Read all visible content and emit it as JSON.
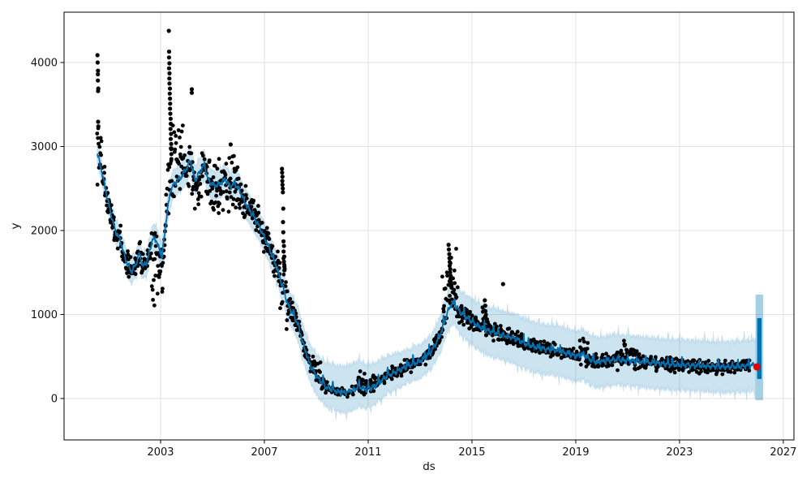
{
  "figure": {
    "title": "",
    "kind": "prophet-forecast-plot"
  },
  "chart_data": {
    "type": "scatter+line+band",
    "title": "",
    "xlabel": "ds",
    "ylabel": "y",
    "x_ticks": [
      2003,
      2007,
      2011,
      2015,
      2019,
      2023,
      2027
    ],
    "y_ticks": [
      0,
      1000,
      2000,
      3000,
      4000
    ],
    "xlim": [
      1999.28,
      2027.41
    ],
    "ylim": [
      -493,
      4599
    ],
    "grid": true,
    "legend": false,
    "colors": {
      "points": "#000000",
      "line": "#0072B2",
      "band": "#0072B2",
      "band_alpha": 0.2,
      "burst_band": "#0072B2",
      "burst_band_alpha": 0.35,
      "highlight": "#e60000",
      "grid": "#e2e2e2",
      "spine": "#000000",
      "text": "#111111"
    },
    "observations": {
      "start": 2000.555,
      "end": 2025.7,
      "interval_years": 0.0137,
      "marker_radius": 2.4,
      "base_noise_abs": 26,
      "base_noise_frac": 0.032,
      "sparse_region": {
        "t0": 2009.45,
        "t1": 2010.55,
        "skip_prob": 0.5
      },
      "global_skip_prob": 0.06
    },
    "trend": [
      [
        2000.56,
        2920
      ],
      [
        2000.72,
        2720
      ],
      [
        2000.9,
        2450
      ],
      [
        2001.1,
        2180
      ],
      [
        2001.25,
        2000
      ],
      [
        2001.45,
        1880
      ],
      [
        2001.65,
        1650
      ],
      [
        2001.88,
        1510
      ],
      [
        2002.05,
        1600
      ],
      [
        2002.18,
        1725
      ],
      [
        2002.32,
        1570
      ],
      [
        2002.5,
        1640
      ],
      [
        2002.68,
        1900
      ],
      [
        2002.85,
        1880
      ],
      [
        2002.95,
        1760
      ],
      [
        2003.05,
        1690
      ],
      [
        2003.15,
        1940
      ],
      [
        2003.25,
        2220
      ],
      [
        2003.4,
        2500
      ],
      [
        2003.6,
        2580
      ],
      [
        2003.8,
        2640
      ],
      [
        2004.0,
        2740
      ],
      [
        2004.16,
        2830
      ],
      [
        2004.32,
        2600
      ],
      [
        2004.5,
        2680
      ],
      [
        2004.68,
        2790
      ],
      [
        2004.85,
        2590
      ],
      [
        2005.05,
        2530
      ],
      [
        2005.3,
        2560
      ],
      [
        2005.5,
        2610
      ],
      [
        2005.68,
        2520
      ],
      [
        2005.85,
        2560
      ],
      [
        2006.05,
        2480
      ],
      [
        2006.2,
        2360
      ],
      [
        2006.4,
        2260
      ],
      [
        2006.6,
        2160
      ],
      [
        2006.8,
        2050
      ],
      [
        2007.0,
        1920
      ],
      [
        2007.2,
        1780
      ],
      [
        2007.45,
        1580
      ],
      [
        2007.7,
        1340
      ],
      [
        2007.9,
        1120
      ],
      [
        2008.1,
        1010
      ],
      [
        2008.3,
        880
      ],
      [
        2008.5,
        640
      ],
      [
        2008.72,
        430
      ],
      [
        2008.95,
        290
      ],
      [
        2009.15,
        210
      ],
      [
        2009.4,
        130
      ],
      [
        2009.7,
        95
      ],
      [
        2009.95,
        65
      ],
      [
        2010.3,
        80
      ],
      [
        2010.65,
        140
      ],
      [
        2010.9,
        110
      ],
      [
        2011.2,
        140
      ],
      [
        2011.5,
        210
      ],
      [
        2011.8,
        280
      ],
      [
        2012.1,
        320
      ],
      [
        2012.45,
        375
      ],
      [
        2012.8,
        420
      ],
      [
        2013.1,
        465
      ],
      [
        2013.4,
        545
      ],
      [
        2013.65,
        680
      ],
      [
        2013.85,
        820
      ],
      [
        2014.05,
        1020
      ],
      [
        2014.22,
        1135
      ],
      [
        2014.4,
        1090
      ],
      [
        2014.6,
        1010
      ],
      [
        2014.85,
        950
      ],
      [
        2015.05,
        900
      ],
      [
        2015.35,
        845
      ],
      [
        2015.65,
        805
      ],
      [
        2015.95,
        780
      ],
      [
        2016.3,
        745
      ],
      [
        2016.7,
        710
      ],
      [
        2017.1,
        645
      ],
      [
        2017.5,
        610
      ],
      [
        2017.9,
        585
      ],
      [
        2018.3,
        575
      ],
      [
        2018.7,
        535
      ],
      [
        2019.0,
        505
      ],
      [
        2019.3,
        525
      ],
      [
        2019.6,
        455
      ],
      [
        2019.85,
        425
      ],
      [
        2020.15,
        445
      ],
      [
        2020.5,
        465
      ],
      [
        2020.9,
        455
      ],
      [
        2021.3,
        445
      ],
      [
        2021.7,
        430
      ],
      [
        2022.1,
        420
      ],
      [
        2022.5,
        410
      ],
      [
        2022.9,
        402
      ],
      [
        2023.3,
        396
      ],
      [
        2023.7,
        390
      ],
      [
        2024.1,
        385
      ],
      [
        2024.5,
        380
      ],
      [
        2024.9,
        376
      ],
      [
        2025.3,
        382
      ],
      [
        2025.6,
        392
      ],
      [
        2025.93,
        400
      ]
    ],
    "band_upper_halfwidth": [
      [
        2000.56,
        130
      ],
      [
        2002,
        160
      ],
      [
        2004,
        170
      ],
      [
        2006,
        170
      ],
      [
        2007.5,
        180
      ],
      [
        2008.5,
        220
      ],
      [
        2009.5,
        300
      ],
      [
        2010.5,
        320
      ],
      [
        2011.5,
        250
      ],
      [
        2012.5,
        190
      ],
      [
        2013.5,
        200
      ],
      [
        2014.5,
        250
      ],
      [
        2015.5,
        280
      ],
      [
        2017,
        290
      ],
      [
        2019,
        290
      ],
      [
        2021,
        295
      ],
      [
        2023,
        295
      ],
      [
        2025.93,
        300
      ]
    ],
    "band_lower_halfwidth": [
      [
        2000.56,
        130
      ],
      [
        2002,
        150
      ],
      [
        2004,
        170
      ],
      [
        2006,
        170
      ],
      [
        2007.5,
        180
      ],
      [
        2008.5,
        200
      ],
      [
        2009.5,
        230
      ],
      [
        2010.5,
        240
      ],
      [
        2011.5,
        220
      ],
      [
        2012.5,
        200
      ],
      [
        2013.5,
        210
      ],
      [
        2014.5,
        250
      ],
      [
        2015.5,
        290
      ],
      [
        2017,
        300
      ],
      [
        2019,
        300
      ],
      [
        2021,
        300
      ],
      [
        2023,
        300
      ],
      [
        2025.93,
        310
      ]
    ],
    "noise_regions": [
      {
        "t0": 2000.555,
        "t1": 2000.8,
        "bias": 60,
        "spread": 230,
        "skew": 0
      },
      {
        "t0": 2002.6,
        "t1": 2003.17,
        "bias": 0,
        "spread": 330,
        "skew": -1
      },
      {
        "t0": 2003.2,
        "t1": 2003.95,
        "bias": -50,
        "spread": 420,
        "skew": 1
      },
      {
        "t0": 2004.05,
        "t1": 2004.6,
        "bias": -120,
        "spread": 160,
        "skew": 0
      },
      {
        "t0": 2004.6,
        "t1": 2006.1,
        "bias": 0,
        "spread": 150,
        "skew": 0
      },
      {
        "t0": 2007.5,
        "t1": 2007.92,
        "bias": 30,
        "spread": 170,
        "skew": 0
      },
      {
        "t0": 2008.85,
        "t1": 2009.2,
        "bias": 60,
        "spread": 90,
        "skew": 0
      },
      {
        "t0": 2010.6,
        "t1": 2011.3,
        "bias": 40,
        "spread": 70,
        "skew": 0
      },
      {
        "t0": 2013.85,
        "t1": 2014.45,
        "bias": -30,
        "spread": 300,
        "skew": 1
      },
      {
        "t0": 2015.4,
        "t1": 2015.62,
        "bias": 0,
        "spread": 170,
        "skew": 1
      },
      {
        "t0": 2019.15,
        "t1": 2019.5,
        "bias": 50,
        "spread": 90,
        "skew": 0
      },
      {
        "t0": 2020.6,
        "t1": 2021.4,
        "bias": 40,
        "spread": 80,
        "skew": 0
      }
    ],
    "outlier_streaks": [
      {
        "t": 2000.575,
        "dt": 0.03,
        "values": [
          4087,
          4000,
          3902,
          3860,
          3785,
          3690,
          3660,
          3295,
          3240
        ]
      },
      {
        "t": 2003.32,
        "dt": 0.1,
        "values": [
          4377,
          4129,
          4060,
          3990,
          3930,
          3870,
          3810,
          3750,
          3690,
          3630,
          3570,
          3510,
          3450,
          3390,
          3330,
          3270,
          3210,
          3150,
          3090,
          3030,
          2970,
          2910,
          2850
        ]
      },
      {
        "t": 2004.2,
        "dt": 0.02,
        "values": [
          3681,
          3640
        ]
      },
      {
        "t": 2005.7,
        "dt": 0.0,
        "values": [
          3024
        ]
      },
      {
        "t": 2007.68,
        "dt": 0.1,
        "values": [
          2734,
          2690,
          2640,
          2590,
          2545,
          2500,
          2455,
          2261,
          2100,
          1980,
          1870,
          1816,
          1750,
          1690,
          1630,
          1570,
          1526
        ]
      },
      {
        "t": 2014.1,
        "dt": 0.12,
        "values": [
          1830,
          1775,
          1720,
          1670,
          1625,
          1580,
          1540,
          1500,
          1460,
          1425,
          1390,
          1355,
          1320
        ]
      },
      {
        "t": 2015.5,
        "dt": 0.06,
        "values": [
          1169,
          1105,
          1040,
          980,
          920,
          860,
          800,
          754
        ]
      },
      {
        "t": 2016.2,
        "dt": 0.0,
        "values": [
          1362
        ]
      }
    ],
    "forecast_burst": {
      "t_start_band": 2025.93,
      "t_end_band": 2026.22,
      "t_start_line": 2025.99,
      "t_end_line": 2026.16,
      "line_low": 232,
      "line_high": 957,
      "band_low": -19,
      "band_high": 1237
    },
    "highlight_point": {
      "t": 2025.98,
      "y": 377,
      "radius": 4.5
    }
  }
}
